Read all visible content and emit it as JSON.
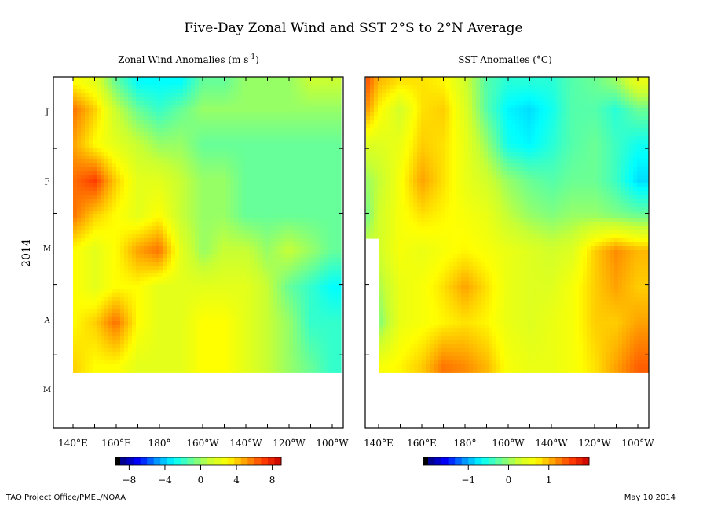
{
  "title": "Five-Day Zonal Wind and SST  2°S to 2°N Average",
  "year_label": "2014",
  "credit": "TAO Project Office/PMEL/NOAA",
  "date": "May 10 2014",
  "month_labels": [
    "J",
    "F",
    "M",
    "A",
    "M"
  ],
  "month_days": [
    15,
    45,
    74,
    105,
    135
  ],
  "month_ticks": [
    31,
    59,
    90,
    120
  ],
  "lon_labels": [
    "140°E",
    "160°E",
    "180°",
    "160°W",
    "140°W",
    "120°W",
    "100°W"
  ],
  "lon_label_values": [
    140,
    160,
    180,
    200,
    220,
    240,
    260
  ],
  "colormap": [
    "#00007a",
    "#0000ff",
    "#0090ff",
    "#00ffff",
    "#66ff99",
    "#c8ff33",
    "#ffff00",
    "#ffa000",
    "#ff3c00",
    "#c80000"
  ],
  "chart_data": [
    {
      "type": "heatmap",
      "title": "Zonal Wind Anomalies (m s⁻¹)",
      "title_main": "Zonal Wind Anomalies (m s",
      "title_sup": "-1",
      "title_end": ")",
      "x": [
        140,
        150,
        160,
        170,
        180,
        190,
        200,
        210,
        220,
        230,
        240,
        250,
        260
      ],
      "y_days": [
        2,
        14,
        29,
        45,
        60,
        75,
        91,
        106,
        125
      ],
      "xlim": [
        140,
        264
      ],
      "data_end_day": 128,
      "crange": [
        -9,
        9
      ],
      "colorbar_ticks": [
        -8,
        -4,
        0,
        4,
        8
      ],
      "colorbar_labels": [
        "−8",
        "−4",
        "0",
        "4",
        "8"
      ],
      "values": [
        [
          3,
          2,
          -1,
          -3,
          -3,
          -3,
          -1,
          -1,
          0,
          0,
          0,
          1,
          1
        ],
        [
          6,
          4,
          1,
          -1,
          -2,
          -1,
          0,
          0,
          0,
          0,
          0,
          0,
          0
        ],
        [
          5,
          3,
          2,
          1,
          0,
          0,
          -1,
          -1,
          -1,
          -1,
          -1,
          -1,
          -1
        ],
        [
          6,
          7,
          4,
          2,
          2,
          1,
          0,
          0,
          -1,
          -1,
          -1,
          -1,
          -1
        ],
        [
          6,
          4,
          3,
          2,
          3,
          1,
          0,
          0,
          -1,
          -1,
          -1,
          -1,
          -1
        ],
        [
          3,
          2,
          3,
          5,
          6,
          2,
          0,
          1,
          1,
          0,
          1,
          0,
          -1
        ],
        [
          3,
          2,
          3,
          3,
          2,
          2,
          2,
          2,
          2,
          1,
          -1,
          -2,
          -3
        ],
        [
          3,
          4,
          6,
          3,
          2,
          2,
          3,
          3,
          2,
          1,
          0,
          -2,
          -2
        ],
        [
          4,
          3,
          3,
          2,
          2,
          2,
          3,
          3,
          2,
          1,
          0,
          -1,
          -2
        ]
      ]
    },
    {
      "type": "heatmap",
      "title": "SST Anomalies (°C)",
      "x": [
        134,
        140,
        150,
        160,
        170,
        180,
        190,
        200,
        210,
        220,
        230,
        240,
        250,
        260
      ],
      "y_days": [
        2,
        14,
        29,
        45,
        60,
        75,
        91,
        106,
        125
      ],
      "xlim": [
        134,
        265
      ],
      "data_end_day": 128,
      "lower_start_day": 70,
      "lower_start_lon": 140,
      "crange": [
        -2,
        2
      ],
      "colorbar_ticks": [
        -1,
        0,
        1
      ],
      "colorbar_labels": [
        "−1",
        "0",
        "1"
      ],
      "values": [
        [
          1.5,
          1.0,
          0.8,
          0.8,
          0.7,
          0.3,
          -0.3,
          -0.5,
          -0.5,
          -0.5,
          -0.3,
          -0.2,
          0,
          0.5
        ],
        [
          1.2,
          0.7,
          0.3,
          0.8,
          0.9,
          0.4,
          -0.3,
          -0.7,
          -0.8,
          -0.6,
          -0.3,
          -0.3,
          -0.5,
          -0.2
        ],
        [
          0.4,
          0.4,
          0.5,
          0.9,
          0.8,
          0.5,
          0,
          -0.6,
          -0.7,
          -0.5,
          -0.3,
          -0.2,
          -0.4,
          -0.6
        ],
        [
          0,
          0.2,
          0.6,
          1.1,
          0.8,
          0.5,
          0.3,
          0,
          -0.2,
          -0.3,
          -0.2,
          -0.2,
          -0.4,
          -0.8
        ],
        [
          -0.2,
          0.3,
          0.6,
          0.8,
          0.7,
          0.6,
          0.5,
          0.2,
          0,
          -0.1,
          0,
          0,
          -0.1,
          -0.2
        ],
        [
          0.3,
          0.3,
          0.6,
          0.5,
          0.6,
          0.7,
          0.6,
          0.5,
          0.4,
          0.3,
          0.4,
          0.9,
          1.2,
          1.0
        ],
        [
          0.1,
          0.1,
          0.5,
          0.6,
          0.8,
          1.1,
          0.8,
          0.5,
          0.4,
          0.4,
          0.6,
          0.9,
          1.1,
          0.9
        ],
        [
          -0.1,
          -0.1,
          0.5,
          0.6,
          0.7,
          0.8,
          0.7,
          0.5,
          0.4,
          0.5,
          0.6,
          0.9,
          0.9,
          1.1
        ],
        [
          0.6,
          0.6,
          0.7,
          0.9,
          1.3,
          1.2,
          1.0,
          0.6,
          0.5,
          0.5,
          0.6,
          0.8,
          1.1,
          1.4
        ]
      ]
    }
  ]
}
